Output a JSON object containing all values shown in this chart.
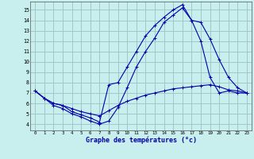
{
  "title": "Graphe des températures (°c)",
  "background_color": "#c8eeee",
  "grid_color": "#a0c8c8",
  "line_color": "#0000aa",
  "x_ticks": [
    0,
    1,
    2,
    3,
    4,
    5,
    6,
    7,
    8,
    9,
    10,
    11,
    12,
    13,
    14,
    15,
    16,
    17,
    18,
    19,
    20,
    21,
    22,
    23
  ],
  "y_ticks": [
    4,
    5,
    6,
    7,
    8,
    9,
    10,
    11,
    12,
    13,
    14,
    15
  ],
  "ylim": [
    3.4,
    15.8
  ],
  "xlim": [
    -0.5,
    23.5
  ],
  "line1_x": [
    0,
    1,
    2,
    3,
    4,
    5,
    6,
    7,
    8,
    9,
    10,
    11,
    12,
    13,
    14,
    15,
    16,
    17,
    18,
    19,
    20,
    21,
    22,
    23
  ],
  "line1_y": [
    7.2,
    6.5,
    6.0,
    5.8,
    5.2,
    4.9,
    4.6,
    4.2,
    7.8,
    8.0,
    9.5,
    11.0,
    12.5,
    13.5,
    14.3,
    15.0,
    15.5,
    14.0,
    13.8,
    12.2,
    10.2,
    8.5,
    7.5,
    7.0
  ],
  "line2_x": [
    0,
    1,
    2,
    3,
    4,
    5,
    6,
    7,
    8,
    9,
    10,
    11,
    12,
    13,
    14,
    15,
    16,
    17,
    18,
    19,
    20,
    21,
    22,
    23
  ],
  "line2_y": [
    7.2,
    6.5,
    6.0,
    5.8,
    5.5,
    5.2,
    5.0,
    4.8,
    5.3,
    5.8,
    6.2,
    6.5,
    6.8,
    7.0,
    7.2,
    7.4,
    7.5,
    7.6,
    7.7,
    7.8,
    7.6,
    7.3,
    7.2,
    7.0
  ],
  "line3_x": [
    0,
    1,
    2,
    3,
    4,
    5,
    6,
    7,
    8,
    9,
    10,
    11,
    12,
    13,
    14,
    15,
    16,
    17,
    18,
    19,
    20,
    21,
    22,
    23
  ],
  "line3_y": [
    7.2,
    6.5,
    5.8,
    5.5,
    5.0,
    4.7,
    4.3,
    4.0,
    4.3,
    5.6,
    7.5,
    9.5,
    11.0,
    12.3,
    13.8,
    14.5,
    15.2,
    14.0,
    12.0,
    8.5,
    7.0,
    7.2,
    7.0,
    7.0
  ]
}
